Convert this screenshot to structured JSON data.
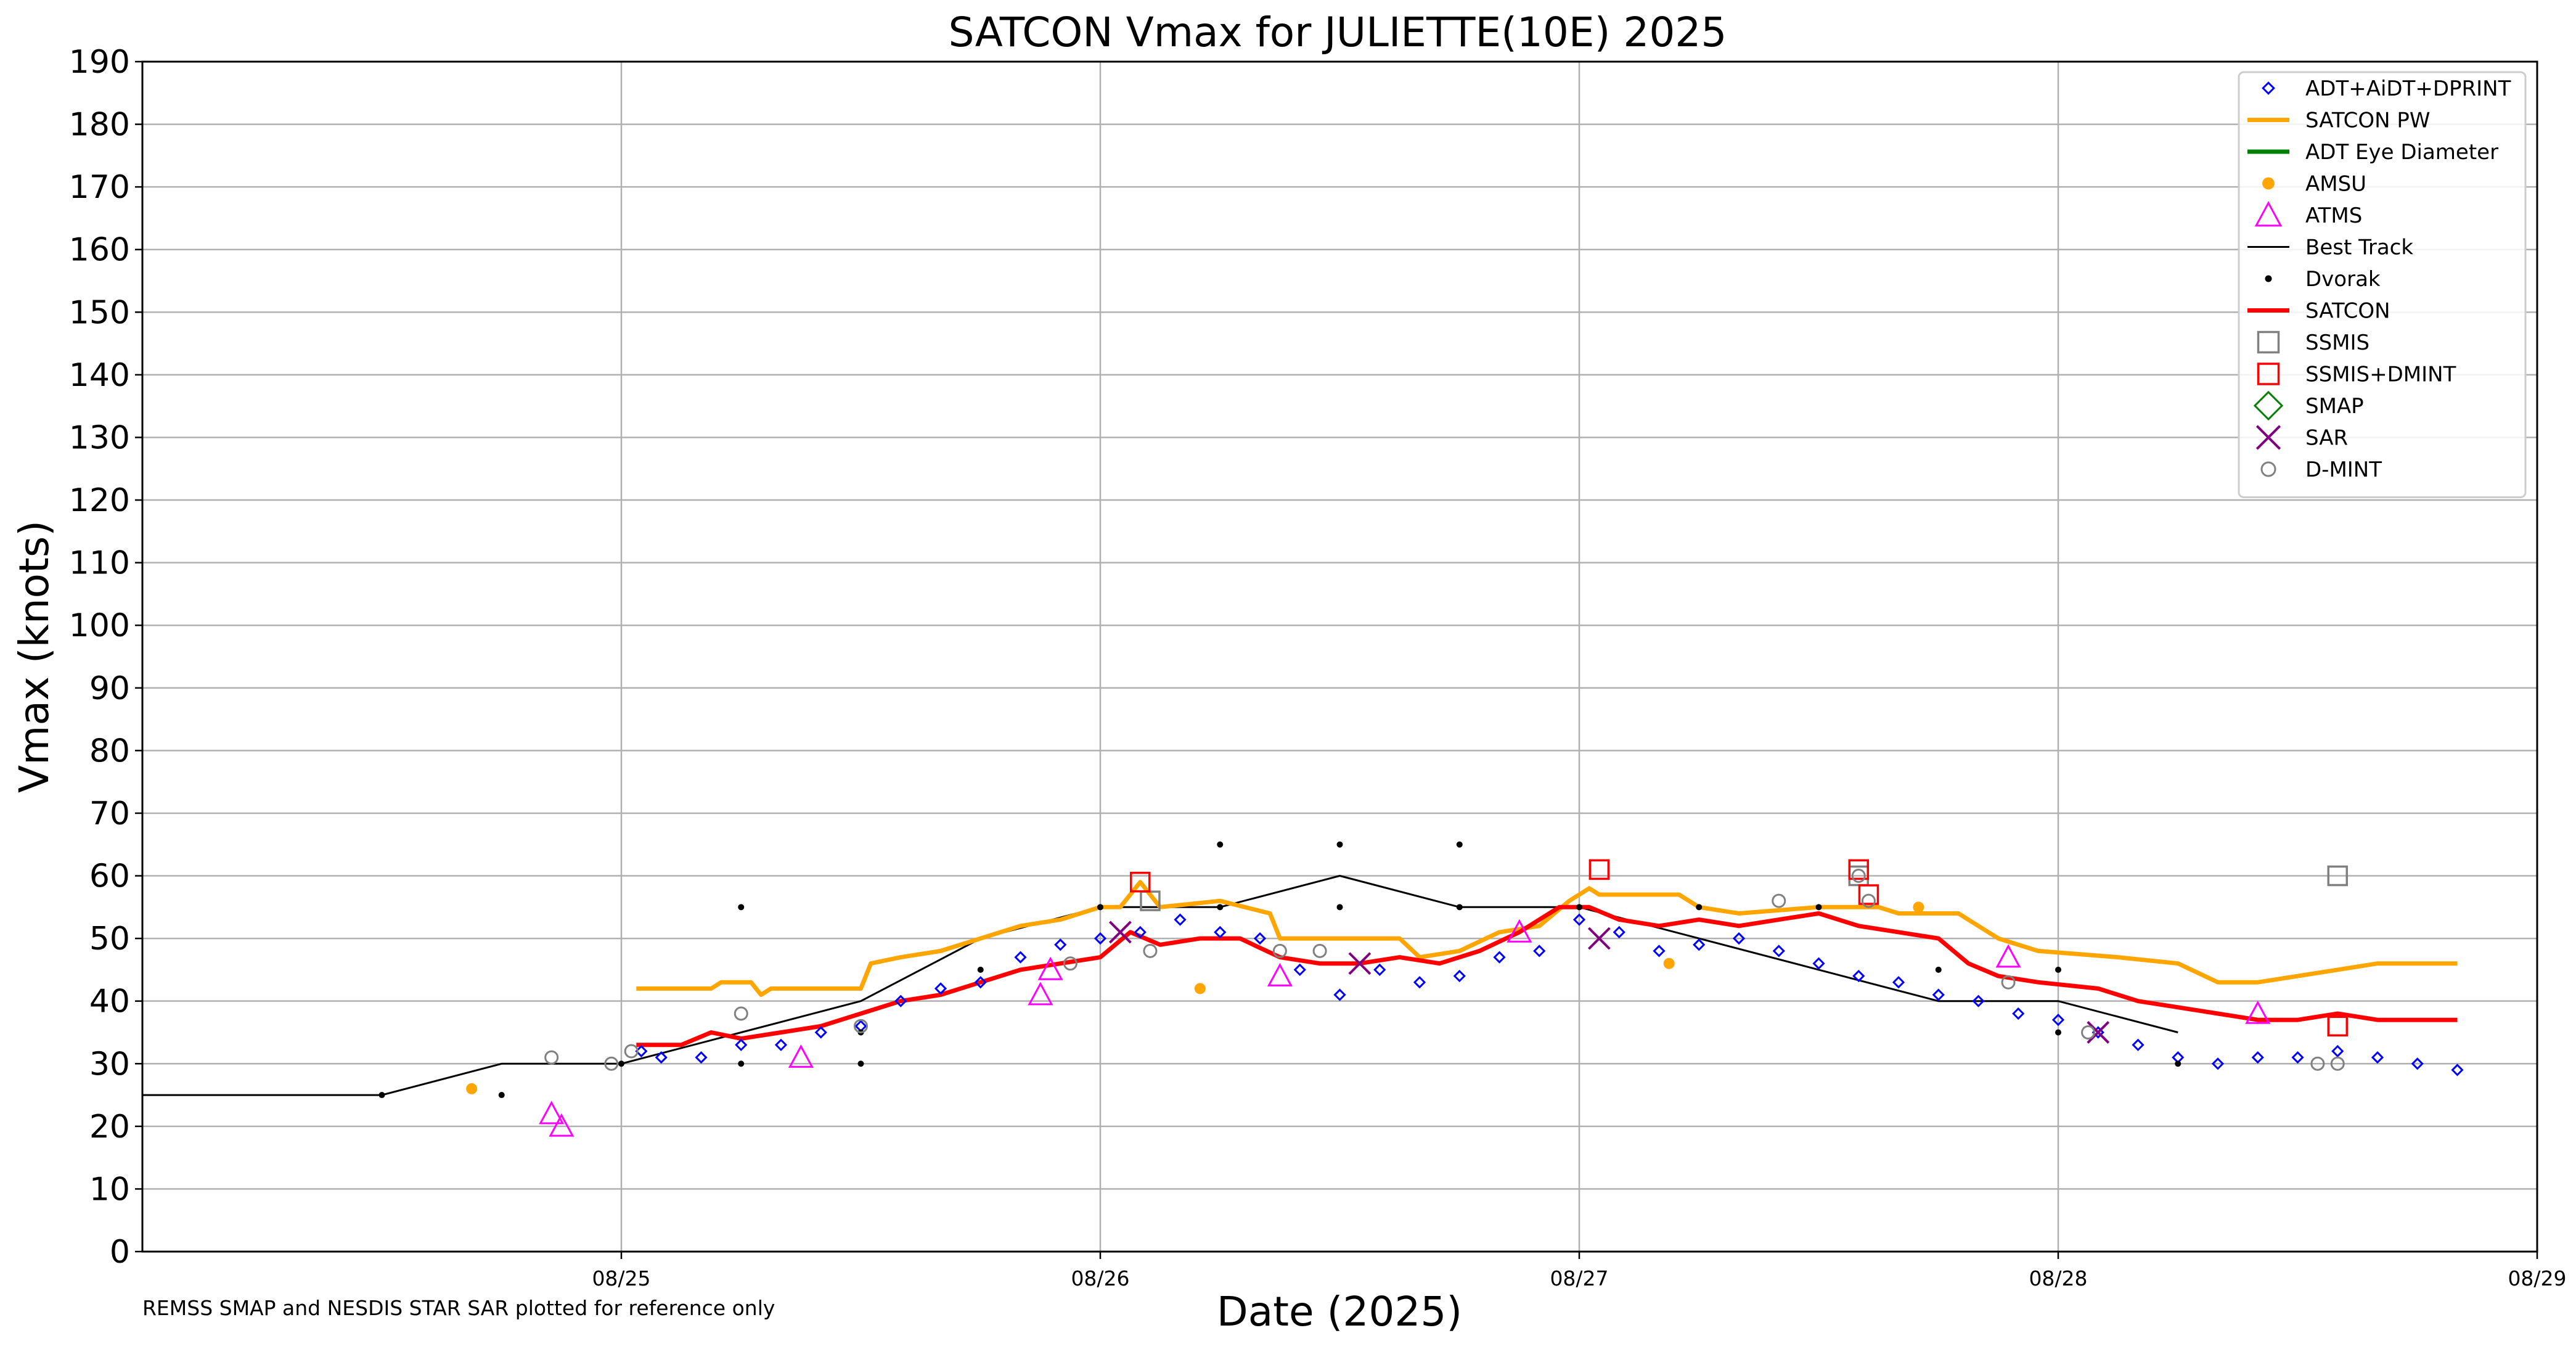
{
  "chart_data": {
    "type": "line",
    "title": "SATCON Vmax for JULIETTE(10E) 2025",
    "xlabel": "Date (2025)",
    "ylabel": "Vmax (knots)",
    "footnote": "REMSS SMAP and NESDIS STAR SAR plotted for reference only",
    "xlim": [
      "2025-08-24T00:00",
      "2025-08-29T00:00"
    ],
    "ylim": [
      0,
      190
    ],
    "x_ticks": [
      "08/25",
      "08/26",
      "08/27",
      "08/28",
      "08/29"
    ],
    "y_ticks": [
      0,
      10,
      20,
      30,
      40,
      50,
      60,
      70,
      80,
      90,
      100,
      110,
      120,
      130,
      140,
      150,
      160,
      170,
      180,
      190
    ],
    "grid": true,
    "legend_position": "top-right",
    "legend": [
      {
        "label": "ADT+AiDT+DPRINT",
        "marker": "diamond-open",
        "color": "#0000ff"
      },
      {
        "label": "SATCON PW",
        "marker": "line",
        "color": "#ffa500"
      },
      {
        "label": "ADT Eye Diameter",
        "marker": "line",
        "color": "#008000"
      },
      {
        "label": "AMSU",
        "marker": "dot",
        "color": "#ffa500"
      },
      {
        "label": "ATMS",
        "marker": "triangle-open",
        "color": "#ff00ff"
      },
      {
        "label": "Best Track",
        "marker": "thin-line",
        "color": "#000000"
      },
      {
        "label": "Dvorak",
        "marker": "small-dot",
        "color": "#000000"
      },
      {
        "label": "SATCON",
        "marker": "line",
        "color": "#ff0000"
      },
      {
        "label": "SSMIS",
        "marker": "square-open",
        "color": "#808080"
      },
      {
        "label": "SSMIS+DMINT",
        "marker": "square-open",
        "color": "#ff0000"
      },
      {
        "label": "SMAP",
        "marker": "diamond-big-open",
        "color": "#008000"
      },
      {
        "label": "SAR",
        "marker": "x",
        "color": "#800080"
      },
      {
        "label": "D-MINT",
        "marker": "circle-open",
        "color": "#808080"
      }
    ],
    "series": {
      "best_track": {
        "color": "#000000",
        "points": [
          [
            "2025-08-24T00:00",
            25
          ],
          [
            "2025-08-24T12:00",
            25
          ],
          [
            "2025-08-24T18:00",
            30
          ],
          [
            "2025-08-25T00:00",
            30
          ],
          [
            "2025-08-25T06:00",
            35
          ],
          [
            "2025-08-25T12:00",
            40
          ],
          [
            "2025-08-25T18:00",
            50
          ],
          [
            "2025-08-26T00:00",
            55
          ],
          [
            "2025-08-26T06:00",
            55
          ],
          [
            "2025-08-26T12:00",
            60
          ],
          [
            "2025-08-26T18:00",
            55
          ],
          [
            "2025-08-27T00:00",
            55
          ],
          [
            "2025-08-27T06:00",
            50
          ],
          [
            "2025-08-27T12:00",
            45
          ],
          [
            "2025-08-27T18:00",
            40
          ],
          [
            "2025-08-28T00:00",
            40
          ],
          [
            "2025-08-28T06:00",
            35
          ]
        ]
      },
      "satcon_pw": {
        "color": "#ffa500",
        "points": [
          [
            "2025-08-25T00:45",
            42
          ],
          [
            "2025-08-25T04:30",
            42
          ],
          [
            "2025-08-25T05:00",
            43
          ],
          [
            "2025-08-25T06:30",
            43
          ],
          [
            "2025-08-25T07:00",
            41
          ],
          [
            "2025-08-25T07:30",
            42
          ],
          [
            "2025-08-25T12:00",
            42
          ],
          [
            "2025-08-25T12:30",
            46
          ],
          [
            "2025-08-25T14:00",
            47
          ],
          [
            "2025-08-25T16:00",
            48
          ],
          [
            "2025-08-25T18:00",
            50
          ],
          [
            "2025-08-25T20:00",
            52
          ],
          [
            "2025-08-25T22:00",
            53
          ],
          [
            "2025-08-26T00:00",
            55
          ],
          [
            "2025-08-26T01:00",
            55
          ],
          [
            "2025-08-26T02:00",
            59
          ],
          [
            "2025-08-26T03:00",
            55
          ],
          [
            "2025-08-26T06:00",
            56
          ],
          [
            "2025-08-26T08:30",
            54
          ],
          [
            "2025-08-26T09:00",
            50
          ],
          [
            "2025-08-26T11:00",
            50
          ],
          [
            "2025-08-26T15:00",
            50
          ],
          [
            "2025-08-26T16:00",
            47
          ],
          [
            "2025-08-26T18:00",
            48
          ],
          [
            "2025-08-26T20:00",
            51
          ],
          [
            "2025-08-26T22:00",
            52
          ],
          [
            "2025-08-26T23:30",
            56
          ],
          [
            "2025-08-27T00:30",
            58
          ],
          [
            "2025-08-27T01:00",
            57
          ],
          [
            "2025-08-27T05:00",
            57
          ],
          [
            "2025-08-27T06:00",
            55
          ],
          [
            "2025-08-27T08:00",
            54
          ],
          [
            "2025-08-27T12:00",
            55
          ],
          [
            "2025-08-27T15:00",
            55
          ],
          [
            "2025-08-27T16:00",
            54
          ],
          [
            "2025-08-27T19:00",
            54
          ],
          [
            "2025-08-27T20:00",
            52
          ],
          [
            "2025-08-27T21:00",
            50
          ],
          [
            "2025-08-27T23:00",
            48
          ],
          [
            "2025-08-28T03:00",
            47
          ],
          [
            "2025-08-28T06:00",
            46
          ],
          [
            "2025-08-28T08:00",
            43
          ],
          [
            "2025-08-28T10:00",
            43
          ],
          [
            "2025-08-28T14:00",
            45
          ],
          [
            "2025-08-28T16:00",
            46
          ],
          [
            "2025-08-28T20:00",
            46
          ]
        ]
      },
      "satcon": {
        "color": "#ff0000",
        "points": [
          [
            "2025-08-25T00:45",
            33
          ],
          [
            "2025-08-25T03:00",
            33
          ],
          [
            "2025-08-25T04:30",
            35
          ],
          [
            "2025-08-25T06:00",
            34
          ],
          [
            "2025-08-25T08:00",
            35
          ],
          [
            "2025-08-25T10:00",
            36
          ],
          [
            "2025-08-25T12:00",
            38
          ],
          [
            "2025-08-25T14:00",
            40
          ],
          [
            "2025-08-25T16:00",
            41
          ],
          [
            "2025-08-25T18:00",
            43
          ],
          [
            "2025-08-25T20:00",
            45
          ],
          [
            "2025-08-25T22:00",
            46
          ],
          [
            "2025-08-26T00:00",
            47
          ],
          [
            "2025-08-26T01:30",
            51
          ],
          [
            "2025-08-26T03:00",
            49
          ],
          [
            "2025-08-26T05:00",
            50
          ],
          [
            "2025-08-26T07:00",
            50
          ],
          [
            "2025-08-26T09:00",
            47
          ],
          [
            "2025-08-26T11:00",
            46
          ],
          [
            "2025-08-26T13:00",
            46
          ],
          [
            "2025-08-26T15:00",
            47
          ],
          [
            "2025-08-26T17:00",
            46
          ],
          [
            "2025-08-26T19:00",
            48
          ],
          [
            "2025-08-26T21:00",
            51
          ],
          [
            "2025-08-26T23:00",
            55
          ],
          [
            "2025-08-27T00:30",
            55
          ],
          [
            "2025-08-27T02:00",
            53
          ],
          [
            "2025-08-27T04:00",
            52
          ],
          [
            "2025-08-27T06:00",
            53
          ],
          [
            "2025-08-27T08:00",
            52
          ],
          [
            "2025-08-27T10:00",
            53
          ],
          [
            "2025-08-27T12:00",
            54
          ],
          [
            "2025-08-27T14:00",
            52
          ],
          [
            "2025-08-27T16:00",
            51
          ],
          [
            "2025-08-27T18:00",
            50
          ],
          [
            "2025-08-27T19:30",
            46
          ],
          [
            "2025-08-27T21:00",
            44
          ],
          [
            "2025-08-27T23:00",
            43
          ],
          [
            "2025-08-28T02:00",
            42
          ],
          [
            "2025-08-28T04:00",
            40
          ],
          [
            "2025-08-28T06:00",
            39
          ],
          [
            "2025-08-28T08:00",
            38
          ],
          [
            "2025-08-28T10:00",
            37
          ],
          [
            "2025-08-28T12:00",
            37
          ],
          [
            "2025-08-28T14:00",
            38
          ],
          [
            "2025-08-28T16:00",
            37
          ],
          [
            "2025-08-28T20:00",
            37
          ]
        ]
      },
      "adt": {
        "color": "#0000ff",
        "points": [
          [
            "2025-08-25T01:00",
            32
          ],
          [
            "2025-08-25T02:00",
            31
          ],
          [
            "2025-08-25T04:00",
            31
          ],
          [
            "2025-08-25T06:00",
            33
          ],
          [
            "2025-08-25T08:00",
            33
          ],
          [
            "2025-08-25T10:00",
            35
          ],
          [
            "2025-08-25T12:00",
            36
          ],
          [
            "2025-08-25T14:00",
            40
          ],
          [
            "2025-08-25T16:00",
            42
          ],
          [
            "2025-08-25T18:00",
            43
          ],
          [
            "2025-08-25T20:00",
            47
          ],
          [
            "2025-08-25T22:00",
            49
          ],
          [
            "2025-08-26T00:00",
            50
          ],
          [
            "2025-08-26T02:00",
            51
          ],
          [
            "2025-08-26T04:00",
            53
          ],
          [
            "2025-08-26T06:00",
            51
          ],
          [
            "2025-08-26T08:00",
            50
          ],
          [
            "2025-08-26T10:00",
            45
          ],
          [
            "2025-08-26T12:00",
            41
          ],
          [
            "2025-08-26T14:00",
            45
          ],
          [
            "2025-08-26T16:00",
            43
          ],
          [
            "2025-08-26T18:00",
            44
          ],
          [
            "2025-08-26T20:00",
            47
          ],
          [
            "2025-08-26T22:00",
            48
          ],
          [
            "2025-08-27T00:00",
            53
          ],
          [
            "2025-08-27T02:00",
            51
          ],
          [
            "2025-08-27T04:00",
            48
          ],
          [
            "2025-08-27T06:00",
            49
          ],
          [
            "2025-08-27T08:00",
            50
          ],
          [
            "2025-08-27T10:00",
            48
          ],
          [
            "2025-08-27T12:00",
            46
          ],
          [
            "2025-08-27T14:00",
            44
          ],
          [
            "2025-08-27T16:00",
            43
          ],
          [
            "2025-08-27T18:00",
            41
          ],
          [
            "2025-08-27T20:00",
            40
          ],
          [
            "2025-08-27T22:00",
            38
          ],
          [
            "2025-08-28T00:00",
            37
          ],
          [
            "2025-08-28T02:00",
            35
          ],
          [
            "2025-08-28T04:00",
            33
          ],
          [
            "2025-08-28T06:00",
            31
          ],
          [
            "2025-08-28T08:00",
            30
          ],
          [
            "2025-08-28T10:00",
            31
          ],
          [
            "2025-08-28T12:00",
            31
          ],
          [
            "2025-08-28T14:00",
            32
          ],
          [
            "2025-08-28T16:00",
            31
          ],
          [
            "2025-08-28T18:00",
            30
          ],
          [
            "2025-08-28T20:00",
            29
          ]
        ]
      },
      "dvorak": {
        "color": "#000000",
        "points": [
          [
            "2025-08-24T12:00",
            25
          ],
          [
            "2025-08-24T18:00",
            25
          ],
          [
            "2025-08-25T00:00",
            30
          ],
          [
            "2025-08-25T06:00",
            55
          ],
          [
            "2025-08-25T06:00",
            30
          ],
          [
            "2025-08-25T12:00",
            35
          ],
          [
            "2025-08-25T12:00",
            30
          ],
          [
            "2025-08-25T18:00",
            45
          ],
          [
            "2025-08-26T00:00",
            55
          ],
          [
            "2025-08-26T06:00",
            65
          ],
          [
            "2025-08-26T06:00",
            55
          ],
          [
            "2025-08-26T12:00",
            65
          ],
          [
            "2025-08-26T12:00",
            55
          ],
          [
            "2025-08-26T18:00",
            65
          ],
          [
            "2025-08-26T18:00",
            55
          ],
          [
            "2025-08-27T00:00",
            55
          ],
          [
            "2025-08-27T06:00",
            55
          ],
          [
            "2025-08-27T12:00",
            55
          ],
          [
            "2025-08-27T18:00",
            45
          ],
          [
            "2025-08-28T00:00",
            45
          ],
          [
            "2025-08-28T00:00",
            35
          ],
          [
            "2025-08-28T06:00",
            30
          ]
        ]
      },
      "amsu": {
        "color": "#ffa500",
        "points": [
          [
            "2025-08-24T16:30",
            26
          ],
          [
            "2025-08-26T05:00",
            42
          ],
          [
            "2025-08-27T04:30",
            46
          ],
          [
            "2025-08-27T17:00",
            55
          ]
        ]
      },
      "atms": {
        "color": "#ff00ff",
        "points": [
          [
            "2025-08-24T20:30",
            22
          ],
          [
            "2025-08-24T21:00",
            20
          ],
          [
            "2025-08-25T09:00",
            31
          ],
          [
            "2025-08-25T21:00",
            41
          ],
          [
            "2025-08-25T21:30",
            45
          ],
          [
            "2025-08-26T09:00",
            44
          ],
          [
            "2025-08-26T21:00",
            51
          ],
          [
            "2025-08-27T21:30",
            47
          ],
          [
            "2025-08-28T10:00",
            38
          ]
        ]
      },
      "ssmis": {
        "color": "#808080",
        "points": [
          [
            "2025-08-26T02:30",
            56
          ],
          [
            "2025-08-27T14:00",
            60
          ],
          [
            "2025-08-28T14:00",
            60
          ]
        ]
      },
      "ssmis_dmint": {
        "color": "#ff0000",
        "points": [
          [
            "2025-08-26T02:00",
            59
          ],
          [
            "2025-08-27T01:00",
            61
          ],
          [
            "2025-08-27T14:00",
            61
          ],
          [
            "2025-08-27T14:30",
            57
          ],
          [
            "2025-08-28T14:00",
            36
          ]
        ]
      },
      "sar": {
        "color": "#800080",
        "points": [
          [
            "2025-08-26T01:00",
            51
          ],
          [
            "2025-08-26T13:00",
            46
          ],
          [
            "2025-08-27T01:00",
            50
          ],
          [
            "2025-08-28T02:00",
            35
          ]
        ]
      },
      "dmint": {
        "color": "#808080",
        "points": [
          [
            "2025-08-24T20:30",
            31
          ],
          [
            "2025-08-24T23:30",
            30
          ],
          [
            "2025-08-25T00:30",
            32
          ],
          [
            "2025-08-25T06:00",
            38
          ],
          [
            "2025-08-25T12:00",
            36
          ],
          [
            "2025-08-25T22:30",
            46
          ],
          [
            "2025-08-26T02:30",
            48
          ],
          [
            "2025-08-26T09:00",
            48
          ],
          [
            "2025-08-26T11:00",
            48
          ],
          [
            "2025-08-27T10:00",
            56
          ],
          [
            "2025-08-27T14:00",
            60
          ],
          [
            "2025-08-27T14:30",
            56
          ],
          [
            "2025-08-27T21:30",
            43
          ],
          [
            "2025-08-28T01:30",
            35
          ],
          [
            "2025-08-28T13:00",
            30
          ],
          [
            "2025-08-28T14:00",
            30
          ]
        ]
      }
    }
  }
}
